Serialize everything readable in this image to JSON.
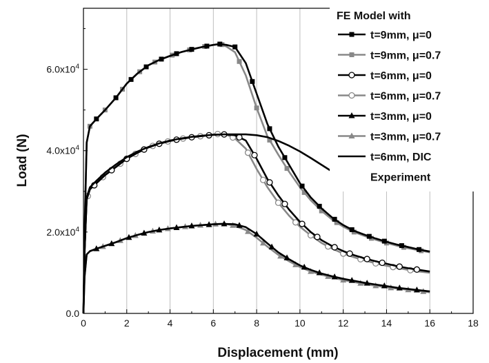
{
  "chart_data": {
    "type": "line",
    "xlabel": "Displacement (mm)",
    "ylabel": "Load (N)",
    "xlim": [
      0,
      18
    ],
    "ylim": [
      0,
      75000
    ],
    "x_ticks": [
      0,
      2,
      4,
      6,
      8,
      10,
      12,
      14,
      16,
      18
    ],
    "x_tick_labels": [
      "0",
      "2",
      "4",
      "6",
      "8",
      "10",
      "12",
      "14",
      "16",
      "18"
    ],
    "y_ticks": [
      0,
      20000,
      40000,
      60000
    ],
    "y_tick_labels": [
      {
        "base": "0.0",
        "exp": ""
      },
      {
        "base": "2.0x10",
        "exp": "4"
      },
      {
        "base": "4.0x10",
        "exp": "4"
      },
      {
        "base": "6.0x10",
        "exp": "4"
      }
    ],
    "grid": "vertical",
    "legend": {
      "title": "FE Model with",
      "placement": "top-right",
      "entries": [
        {
          "text": "t=9mm, μ=0"
        },
        {
          "text": "t=9mm, μ=0.7"
        },
        {
          "text": "t=6mm, μ=0"
        },
        {
          "text": "t=6mm, μ=0.7"
        },
        {
          "text": "t=3mm, μ=0"
        },
        {
          "text": "t=3mm, μ=0.7"
        },
        {
          "text": "t=6mm, DIC"
        },
        {
          "text": "Experiment"
        }
      ]
    },
    "series": [
      {
        "name": "t=9mm, μ=0",
        "color": "#000000",
        "marker": "square-filled",
        "x": [
          0.0,
          0.05,
          0.15,
          0.3,
          0.6,
          1.0,
          1.5,
          2.0,
          2.5,
          3.0,
          3.5,
          4.0,
          4.5,
          5.0,
          5.5,
          6.0,
          6.3,
          6.6,
          7.0,
          7.5,
          8.0,
          8.5,
          9.0,
          9.5,
          10.0,
          10.5,
          11.0,
          11.5,
          12.0,
          12.5,
          13.0,
          13.5,
          14.0,
          14.5,
          15.0,
          15.5,
          16.0
        ],
        "y": [
          0,
          20000,
          42000,
          46000,
          47800,
          50000,
          53000,
          56500,
          59000,
          61000,
          62300,
          63300,
          64200,
          64900,
          65500,
          66000,
          66200,
          66000,
          65500,
          61500,
          54000,
          46500,
          41000,
          36500,
          32000,
          28500,
          25800,
          23500,
          21700,
          20300,
          19300,
          18400,
          17600,
          16900,
          16300,
          15700,
          15200
        ],
        "marker_x": [
          0.6,
          1.5,
          2.2,
          2.9,
          3.6,
          4.3,
          5.0,
          5.7,
          6.3,
          7.0,
          7.8,
          8.6,
          9.3,
          10.1,
          10.9,
          11.6,
          12.4,
          13.2,
          13.9,
          14.7,
          15.5
        ]
      },
      {
        "name": "t=9mm, μ=0.7",
        "color": "#888888",
        "marker": "square-filled",
        "x": [
          0.0,
          0.05,
          0.15,
          0.3,
          0.6,
          1.0,
          1.5,
          2.0,
          2.5,
          3.0,
          3.5,
          4.0,
          4.5,
          5.0,
          5.5,
          6.0,
          6.3,
          6.6,
          7.0,
          7.5,
          8.0,
          8.5,
          9.0,
          9.5,
          10.0,
          10.5,
          11.0,
          11.5,
          12.0,
          12.5,
          13.0,
          13.5,
          14.0,
          14.5,
          15.0,
          15.5,
          16.0
        ],
        "y": [
          0,
          20000,
          42000,
          46000,
          47800,
          50000,
          53000,
          56500,
          59000,
          61000,
          62300,
          63300,
          64200,
          64900,
          65500,
          66000,
          66300,
          65600,
          64200,
          58500,
          50500,
          43500,
          39000,
          34800,
          31000,
          27800,
          25200,
          23000,
          21300,
          20000,
          19000,
          18100,
          17300,
          16600,
          16000,
          15500,
          15000
        ],
        "marker_x": [
          0.3,
          1.0,
          1.8,
          2.6,
          3.3,
          4.1,
          4.9,
          5.6,
          6.4,
          7.2,
          8.0,
          8.6,
          9.4,
          10.2,
          11.0,
          11.7,
          12.5,
          13.3,
          14.0,
          14.8,
          15.6
        ]
      },
      {
        "name": "t=6mm, μ=0",
        "color": "#000000",
        "marker": "circle-open",
        "x": [
          0.0,
          0.05,
          0.15,
          0.3,
          0.6,
          1.0,
          1.5,
          2.0,
          2.5,
          3.0,
          3.5,
          4.0,
          4.5,
          5.0,
          5.5,
          6.0,
          6.5,
          7.0,
          7.5,
          8.0,
          8.5,
          9.0,
          9.5,
          10.0,
          10.5,
          11.0,
          11.5,
          12.0,
          12.5,
          13.0,
          13.5,
          14.0,
          14.5,
          15.0,
          15.5,
          16.0
        ],
        "y": [
          0,
          15000,
          28000,
          30500,
          32000,
          34000,
          36000,
          38000,
          39500,
          40800,
          41700,
          42400,
          42900,
          43300,
          43600,
          43900,
          44000,
          43800,
          42500,
          38000,
          33000,
          29000,
          25500,
          22500,
          20000,
          18000,
          16500,
          15300,
          14300,
          13500,
          12800,
          12200,
          11600,
          11100,
          10700,
          10300
        ],
        "marker_x": [
          0.5,
          1.3,
          2.0,
          2.8,
          3.5,
          4.3,
          5.0,
          5.8,
          6.5,
          7.2,
          7.9,
          8.6,
          9.3,
          10.1,
          10.8,
          11.6,
          12.3,
          13.1,
          13.8,
          14.6,
          15.4
        ]
      },
      {
        "name": "t=6mm, μ=0.7",
        "color": "#888888",
        "marker": "circle-open",
        "x": [
          0.0,
          0.05,
          0.15,
          0.3,
          0.6,
          1.0,
          1.5,
          2.0,
          2.5,
          3.0,
          3.5,
          4.0,
          4.5,
          5.0,
          5.5,
          6.0,
          6.5,
          7.0,
          7.5,
          8.0,
          8.5,
          9.0,
          9.5,
          10.0,
          10.5,
          11.0,
          11.5,
          12.0,
          12.5,
          13.0,
          13.5,
          14.0,
          14.5,
          15.0,
          15.5,
          16.0
        ],
        "y": [
          0,
          15000,
          28000,
          30500,
          32000,
          34000,
          36000,
          38000,
          39500,
          40800,
          41700,
          42400,
          42900,
          43300,
          43600,
          44000,
          44200,
          43000,
          40500,
          35500,
          31000,
          27200,
          24000,
          21300,
          19200,
          17300,
          15900,
          14700,
          13800,
          13000,
          12300,
          11700,
          11200,
          10700,
          10300,
          10000
        ],
        "marker_x": [
          0.2,
          0.9,
          1.7,
          2.4,
          3.2,
          3.9,
          4.6,
          5.4,
          6.2,
          6.9,
          7.6,
          8.3,
          9.0,
          9.8,
          10.5,
          11.3,
          12.0,
          12.8,
          13.5,
          14.3,
          15.1
        ]
      },
      {
        "name": "t=3mm, μ=0",
        "color": "#000000",
        "marker": "triangle-filled",
        "x": [
          0.0,
          0.05,
          0.15,
          0.3,
          0.6,
          1.0,
          1.5,
          2.0,
          2.5,
          3.0,
          3.5,
          4.0,
          4.5,
          5.0,
          5.5,
          6.0,
          6.5,
          7.0,
          7.5,
          8.0,
          8.5,
          9.0,
          9.5,
          10.0,
          10.5,
          11.0,
          11.5,
          12.0,
          12.5,
          13.0,
          13.5,
          14.0,
          14.5,
          15.0,
          15.5,
          16.0
        ],
        "y": [
          0,
          9000,
          14500,
          15300,
          15900,
          16600,
          17500,
          18500,
          19300,
          20000,
          20500,
          20900,
          21200,
          21500,
          21700,
          21900,
          22000,
          21900,
          21200,
          19500,
          17200,
          15000,
          13300,
          11800,
          10700,
          9800,
          9100,
          8500,
          8000,
          7500,
          7100,
          6700,
          6300,
          6000,
          5700,
          5400
        ],
        "marker_x": [
          0.6,
          1.3,
          2.1,
          2.8,
          3.5,
          4.3,
          5.0,
          5.8,
          6.5,
          7.2,
          8.0,
          8.7,
          9.4,
          10.2,
          10.9,
          11.6,
          12.4,
          13.1,
          13.9,
          14.6,
          15.4
        ]
      },
      {
        "name": "t=3mm, μ=0.7",
        "color": "#888888",
        "marker": "triangle-filled",
        "x": [
          0.0,
          0.05,
          0.15,
          0.3,
          0.6,
          1.0,
          1.5,
          2.0,
          2.5,
          3.0,
          3.5,
          4.0,
          4.5,
          5.0,
          5.5,
          6.0,
          6.5,
          7.0,
          7.5,
          8.0,
          8.5,
          9.0,
          9.5,
          10.0,
          10.5,
          11.0,
          11.5,
          12.0,
          12.5,
          13.0,
          13.5,
          14.0,
          14.5,
          15.0,
          15.5,
          16.0
        ],
        "y": [
          0,
          9000,
          14500,
          15300,
          15900,
          16600,
          17500,
          18500,
          19300,
          20000,
          20500,
          20900,
          21200,
          21500,
          21700,
          21900,
          22100,
          21500,
          20500,
          18600,
          16400,
          14400,
          12800,
          11400,
          10300,
          9500,
          8800,
          8200,
          7700,
          7200,
          6800,
          6400,
          6100,
          5800,
          5500,
          5200
        ],
        "marker_x": [
          0.9,
          1.7,
          2.4,
          3.2,
          3.9,
          4.7,
          5.4,
          6.1,
          6.9,
          7.6,
          8.3,
          9.1,
          9.8,
          10.5,
          11.3,
          12.0,
          12.8,
          13.5,
          14.2,
          15.0,
          15.7
        ]
      },
      {
        "name": "t=6mm, DIC Experiment",
        "color": "#000000",
        "marker": "none",
        "x": [
          0.0,
          0.05,
          0.15,
          0.3,
          0.6,
          1.0,
          1.5,
          2.0,
          2.5,
          3.0,
          3.5,
          4.0,
          4.5,
          5.0,
          5.5,
          6.0,
          6.5,
          7.0,
          7.5,
          8.0,
          8.5,
          9.0,
          9.5,
          10.0,
          10.5,
          11.0,
          11.5,
          12.0,
          12.5
        ],
        "y": [
          0,
          15000,
          28500,
          31000,
          32600,
          34600,
          36600,
          38400,
          39800,
          40900,
          41800,
          42500,
          43000,
          43400,
          43700,
          43900,
          44000,
          44000,
          44000,
          43800,
          43300,
          42400,
          41200,
          39800,
          38200,
          36500,
          34800,
          33200,
          32000
        ]
      }
    ]
  }
}
